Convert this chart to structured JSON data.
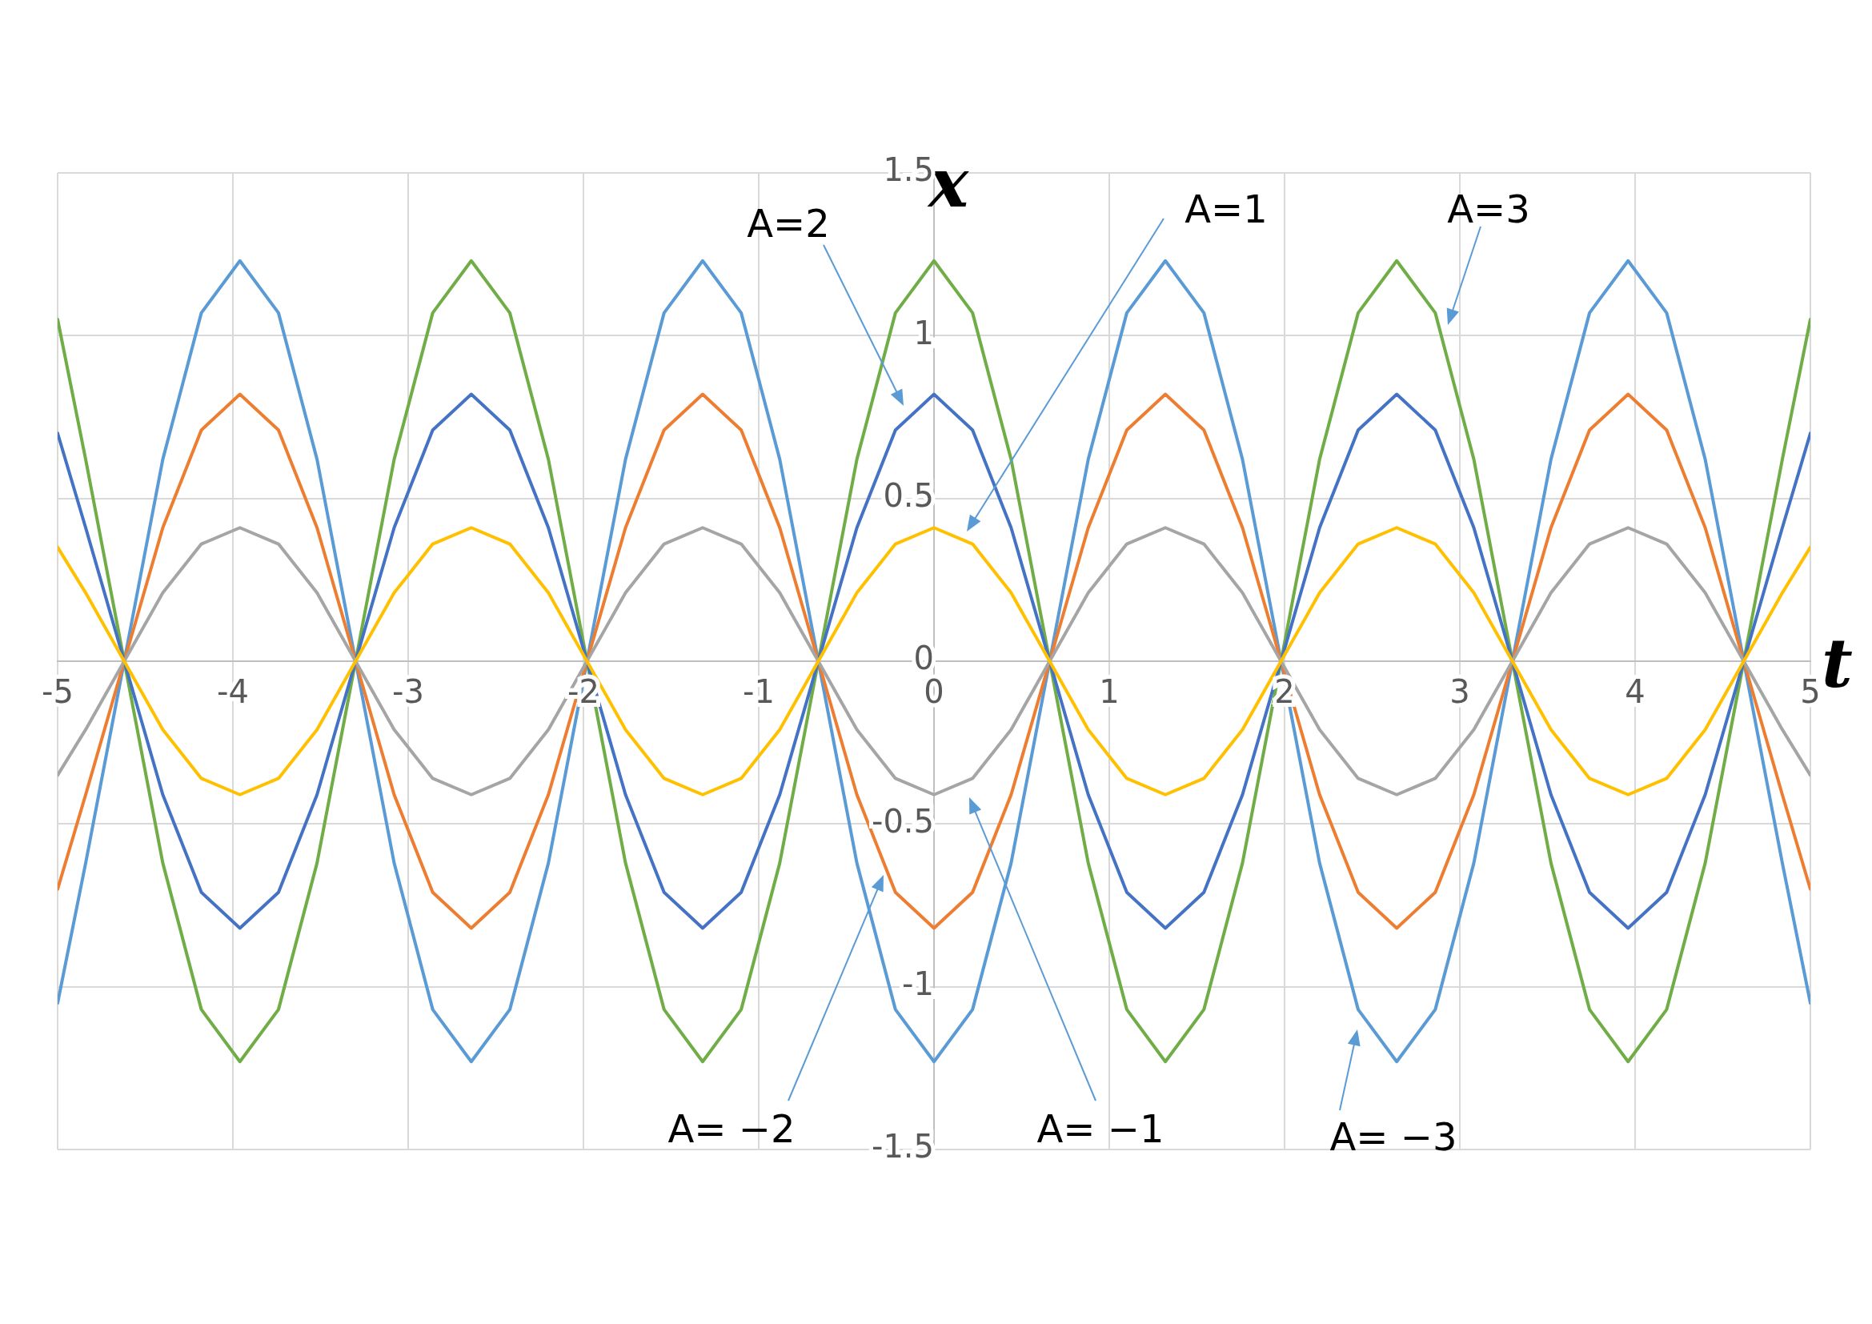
{
  "chart_data": {
    "type": "line",
    "xlabel": "t",
    "ylabel": "x",
    "x": [
      -5,
      -4.84,
      -4.62,
      -4.4,
      -4.18,
      -3.96,
      -3.74,
      -3.52,
      -3.3,
      -3.08,
      -2.86,
      -2.64,
      -2.42,
      -2.2,
      -1.98,
      -1.76,
      -1.54,
      -1.32,
      -1.1,
      -0.88,
      -0.66,
      -0.44,
      -0.22,
      0,
      0.22,
      0.44,
      0.66,
      0.88,
      1.1,
      1.32,
      1.54,
      1.76,
      1.98,
      2.2,
      2.42,
      2.64,
      2.86,
      3.08,
      3.3,
      3.52,
      3.74,
      3.96,
      4.18,
      4.4,
      4.62,
      4.84,
      5
    ],
    "series": [
      {
        "color": "#ffc000",
        "values": [
          0.35,
          0.21,
          0,
          -0.21,
          -0.36,
          -0.41,
          -0.36,
          -0.21,
          0,
          0.21,
          0.36,
          0.41,
          0.36,
          0.21,
          0,
          -0.21,
          -0.36,
          -0.41,
          -0.36,
          -0.21,
          0,
          0.21,
          0.36,
          0.41,
          0.36,
          0.21,
          0,
          -0.21,
          -0.36,
          -0.41,
          -0.36,
          -0.21,
          0,
          0.21,
          0.36,
          0.41,
          0.36,
          0.21,
          0,
          -0.21,
          -0.36,
          -0.41,
          -0.36,
          -0.21,
          0,
          0.21,
          0.35
        ]
      },
      {
        "color": "#a5a5a5",
        "values": [
          -0.35,
          -0.21,
          0,
          0.21,
          0.36,
          0.41,
          0.36,
          0.21,
          0,
          -0.21,
          -0.36,
          -0.41,
          -0.36,
          -0.21,
          0,
          0.21,
          0.36,
          0.41,
          0.36,
          0.21,
          0,
          -0.21,
          -0.36,
          -0.41,
          -0.36,
          -0.21,
          0,
          0.21,
          0.36,
          0.41,
          0.36,
          0.21,
          0,
          -0.21,
          -0.36,
          -0.41,
          -0.36,
          -0.21,
          0,
          0.21,
          0.36,
          0.41,
          0.36,
          0.21,
          0,
          -0.21,
          -0.35
        ]
      },
      {
        "color": "#4472c4",
        "values": [
          0.7,
          0.41,
          0,
          -0.41,
          -0.71,
          -0.82,
          -0.71,
          -0.41,
          0,
          0.41,
          0.71,
          0.82,
          0.71,
          0.41,
          0,
          -0.41,
          -0.71,
          -0.82,
          -0.71,
          -0.41,
          0,
          0.41,
          0.71,
          0.82,
          0.71,
          0.41,
          0,
          -0.41,
          -0.71,
          -0.82,
          -0.71,
          -0.41,
          0,
          0.41,
          0.71,
          0.82,
          0.71,
          0.41,
          0,
          -0.41,
          -0.71,
          -0.82,
          -0.71,
          -0.41,
          0,
          0.41,
          0.7
        ]
      },
      {
        "color": "#ed7d31",
        "values": [
          -0.7,
          -0.41,
          0,
          0.41,
          0.71,
          0.82,
          0.71,
          0.41,
          0,
          -0.41,
          -0.71,
          -0.82,
          -0.71,
          -0.41,
          0,
          0.41,
          0.71,
          0.82,
          0.71,
          0.41,
          0,
          -0.41,
          -0.71,
          -0.82,
          -0.71,
          -0.41,
          0,
          0.41,
          0.71,
          0.82,
          0.71,
          0.41,
          0,
          -0.41,
          -0.71,
          -0.82,
          -0.71,
          -0.41,
          0,
          0.41,
          0.71,
          0.82,
          0.71,
          0.41,
          0,
          -0.41,
          -0.7
        ]
      },
      {
        "color": "#70ad47",
        "values": [
          1.05,
          0.62,
          0,
          -0.62,
          -1.07,
          -1.23,
          -1.07,
          -0.62,
          0,
          0.62,
          1.07,
          1.23,
          1.07,
          0.62,
          0,
          -0.62,
          -1.07,
          -1.23,
          -1.07,
          -0.62,
          0,
          0.62,
          1.07,
          1.23,
          1.07,
          0.62,
          0,
          -0.62,
          -1.07,
          -1.23,
          -1.07,
          -0.62,
          0,
          0.62,
          1.07,
          1.23,
          1.07,
          0.62,
          0,
          -0.62,
          -1.07,
          -1.23,
          -1.07,
          -0.62,
          0,
          0.62,
          1.05
        ]
      },
      {
        "color": "#5b9bd5",
        "values": [
          -1.05,
          -0.62,
          0,
          0.62,
          1.07,
          1.23,
          1.07,
          0.62,
          0,
          -0.62,
          -1.07,
          -1.23,
          -1.07,
          -0.62,
          0,
          0.62,
          1.07,
          1.23,
          1.07,
          0.62,
          0,
          -0.62,
          -1.07,
          -1.23,
          -1.07,
          -0.62,
          0,
          0.62,
          1.07,
          1.23,
          1.07,
          0.62,
          0,
          -0.62,
          -1.07,
          -1.23,
          -1.07,
          -0.62,
          0,
          0.62,
          1.07,
          1.23,
          1.07,
          0.62,
          0,
          -0.62,
          -1.05
        ]
      }
    ],
    "xlim": [
      -5,
      5
    ],
    "xticks": [
      -5,
      -4,
      -3,
      -2,
      -1,
      0,
      1,
      2,
      3,
      4,
      5
    ],
    "ylim": [
      -1.5,
      1.5
    ],
    "yticks": [
      -1.5,
      -1,
      -0.5,
      0,
      0.5,
      1,
      1.5
    ],
    "grid": true,
    "legend": false,
    "marker": "none",
    "line_style": "solid",
    "annotations": [
      "A=2",
      "A=1",
      "A=3",
      "A= −2",
      "A= −1",
      "A= −3"
    ]
  }
}
